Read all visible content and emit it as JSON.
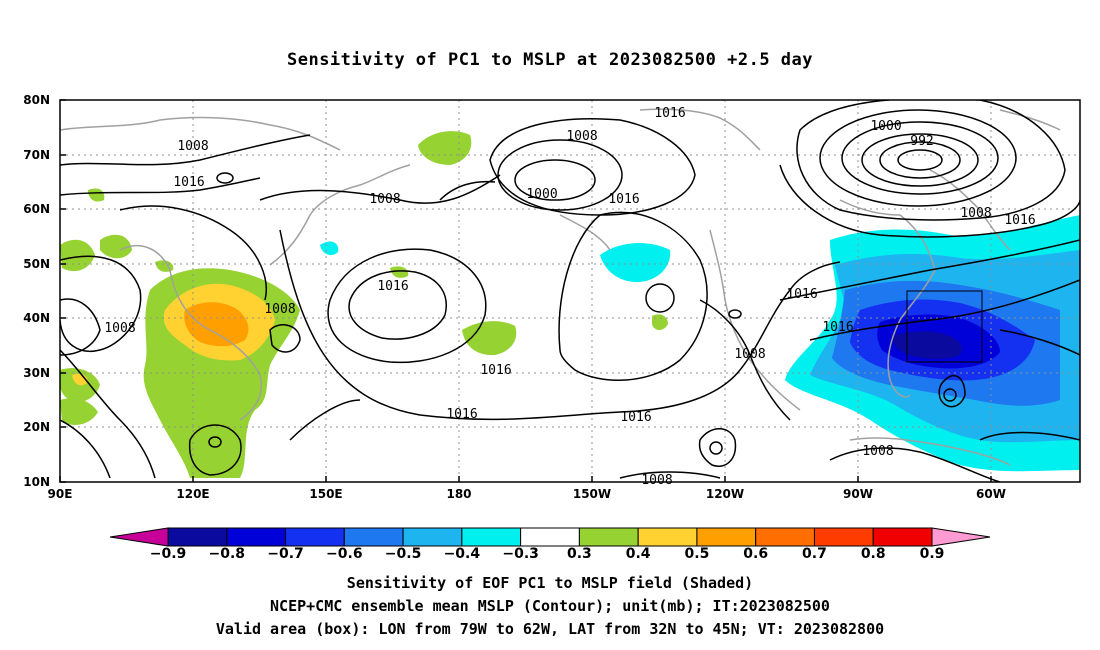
{
  "title": "Sensitivity of PC1 to MSLP at 2023082500 +2.5 day",
  "lat_labels": [
    "80N",
    "70N",
    "60N",
    "50N",
    "40N",
    "30N",
    "20N",
    "10N"
  ],
  "lon_labels": [
    "90E",
    "120E",
    "150E",
    "180",
    "150W",
    "120W",
    "90W",
    "60W"
  ],
  "contour_labels": [
    {
      "text": "1016"
    },
    {
      "text": "1008"
    },
    {
      "text": "1008"
    },
    {
      "text": "1016"
    },
    {
      "text": "1000"
    },
    {
      "text": "992"
    },
    {
      "text": "1008"
    },
    {
      "text": "1016"
    },
    {
      "text": "1016"
    },
    {
      "text": "1000"
    },
    {
      "text": "1016"
    },
    {
      "text": "1008"
    },
    {
      "text": "1016"
    },
    {
      "text": "1008"
    },
    {
      "text": "1008"
    },
    {
      "text": "1016"
    },
    {
      "text": "1016"
    },
    {
      "text": "1008"
    },
    {
      "text": "1016"
    },
    {
      "text": "1016"
    },
    {
      "text": "1016"
    },
    {
      "text": "1008"
    },
    {
      "text": "1008"
    }
  ],
  "colorbar": {
    "labels": [
      "-0.9",
      "-0.8",
      "-0.7",
      "-0.6",
      "-0.5",
      "-0.4",
      "-0.3",
      "0.3",
      "0.4",
      "0.5",
      "0.6",
      "0.7",
      "0.8",
      "0.9"
    ],
    "colors": [
      "#0a0a9e",
      "#0000d8",
      "#1430f0",
      "#1e78f0",
      "#1eb4f0",
      "#00f0f0",
      "#ffffff",
      "#96d232",
      "#ffd232",
      "#ffa000",
      "#ff6e00",
      "#ff3c00",
      "#f00000"
    ],
    "low_color": "#c8009a",
    "high_color": "#ff9ad2"
  },
  "captions": [
    "Sensitivity of EOF PC1 to MSLP field (Shaded)",
    "NCEP+CMC ensemble mean MSLP (Contour); unit(mb); IT:2023082500",
    "Valid area (box): LON from 79W to 62W, LAT from 32N to 45N; VT: 2023082800"
  ]
}
